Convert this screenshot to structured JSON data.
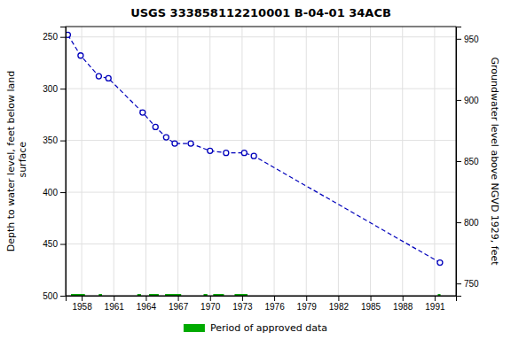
{
  "chart_data": {
    "type": "line",
    "title": "USGS 333858112210001 B-04-01 34ACB",
    "y_label": "Depth to water level, feet below land\n surface",
    "y2_label": "Groundwater level above NGVD 1929, feet",
    "x": [
      1956.7,
      1957.9,
      1959.6,
      1960.5,
      1963.7,
      1964.9,
      1965.9,
      1966.7,
      1968.2,
      1970.0,
      1971.5,
      1973.2,
      1974.1,
      1991.5
    ],
    "series": [
      {
        "type": "line",
        "color": "#0000bb",
        "line_style": "dashed",
        "marker": "circle",
        "values": [
          248,
          268,
          288,
          290,
          323,
          337,
          347,
          353,
          353,
          360,
          362,
          362,
          365,
          468
        ]
      },
      {
        "type": "span",
        "name": "Period of approved data",
        "color": "#00aa00",
        "y": 500,
        "periods": [
          [
            1957.0,
            1958.3
          ],
          [
            1959.6,
            1959.9
          ],
          [
            1963.2,
            1963.55
          ],
          [
            1964.3,
            1965.2
          ],
          [
            1965.8,
            1967.3
          ],
          [
            1969.4,
            1969.75
          ],
          [
            1970.3,
            1971.3
          ],
          [
            1972.3,
            1973.5
          ],
          [
            1991.3,
            1991.55
          ]
        ]
      }
    ],
    "xlim": [
      1956.5,
      1993.0
    ],
    "xticks": [
      1958,
      1961,
      1964,
      1967,
      1970,
      1973,
      1976,
      1979,
      1982,
      1985,
      1988,
      1991
    ],
    "ylim": [
      500,
      240
    ],
    "yticks": [
      250,
      300,
      350,
      400,
      450,
      500
    ],
    "y2lim": [
      740,
      960
    ],
    "y2ticks": [
      950,
      900,
      850,
      800,
      750
    ],
    "grid": true,
    "legend": "bottom"
  }
}
